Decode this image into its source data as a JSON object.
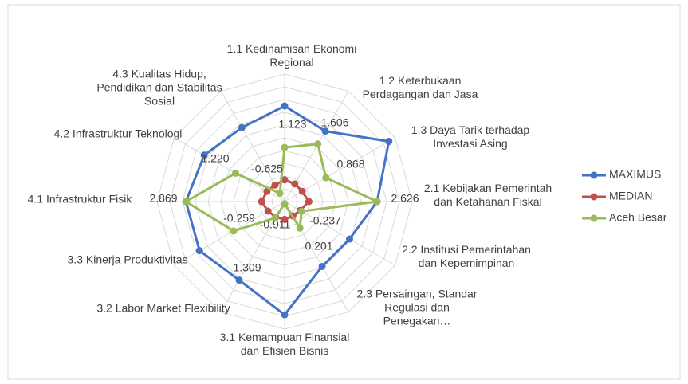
{
  "chart_data": {
    "type": "radar",
    "categories": [
      "1.1   Kedinamisan Ekonomi Regional",
      "1.2 Keterbukaan Perdagangan dan Jasa",
      "1.3 Daya Tarik terhadap Investasi Asing",
      "2.1 Kebijakan Pemerintah dan Ketahanan Fiskal",
      "2.2 Institusi Pemerintahan dan Kepemimpinan",
      "2.3  Persaingan, Standar Regulasi dan Penegakan…",
      "3.1 Kemampuan Finansial dan Efisien Bisnis",
      "3.2 Labor Market Flexibility",
      "3.3 Kinerja Produktivitas",
      "4.1 Infrastruktur Fisik",
      "4.2 Infrastruktur Teknologi",
      "4.3 Kualitas Hidup, Pendidikan dan Stabilitas Sosial"
    ],
    "series": [
      {
        "name": "MAXIMUS",
        "color": "#4472c4",
        "values": [
          2.75,
          2.19,
          3.72,
          2.626,
          1.94,
          1.94,
          3.44,
          2.56,
          2.85,
          2.869,
          2.64,
          2.35
        ]
      },
      {
        "name": "MEDIAN",
        "color": "#c0504d",
        "values": [
          -0.15,
          -0.2,
          -0.2,
          -0.05,
          -0.3,
          -0.35,
          -0.3,
          -0.3,
          -0.25,
          -0.1,
          -0.2,
          -0.25
        ]
      },
      {
        "name": "Aceh Besar",
        "color": "#9bbb59",
        "values": [
          1.123,
          1.606,
          0.868,
          2.626,
          -0.237,
          0.201,
          -0.911,
          -0.259,
          1.309,
          2.869,
          1.22,
          -0.625
        ],
        "value_labels": [
          "1.123",
          "1.606",
          "0.868",
          "2.626",
          "-0.237",
          "0.201",
          "-0.911",
          "-0.259",
          "1.309",
          "2.869",
          "1.220",
          "-0.625"
        ]
      }
    ],
    "rlim": [
      -1,
      4
    ],
    "rticks": [
      -1,
      -0.5,
      0,
      0.5,
      1,
      1.5,
      2,
      2.5,
      3,
      3.5,
      4
    ],
    "grid": true,
    "legend": "right"
  }
}
